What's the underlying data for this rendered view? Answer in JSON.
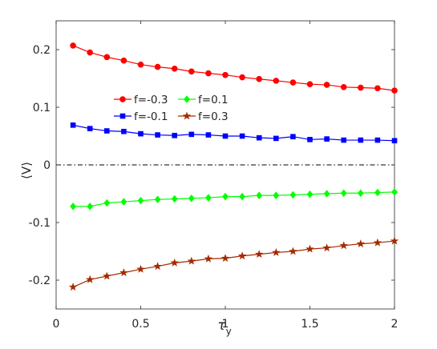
{
  "chart_data": {
    "type": "line",
    "xlabel": "τ",
    "xlabel_sub": "y",
    "ylabel": "⟨V⟩",
    "xlim": [
      0,
      2
    ],
    "ylim": [
      -0.25,
      0.25
    ],
    "xticks": [
      0,
      0.5,
      1,
      1.5,
      2
    ],
    "xtick_labels": [
      "0",
      "0.5",
      "1",
      "1.5",
      "2"
    ],
    "yticks": [
      -0.2,
      -0.1,
      0,
      0.1,
      0.2
    ],
    "ytick_labels": [
      "-0.2",
      "-0.1",
      "0",
      "0.1",
      "0.2"
    ],
    "grid": false,
    "legend_placement": "upper-left, two columns",
    "zero_line": {
      "y": 0,
      "style": "dash-dot",
      "color": "#000000"
    },
    "x": [
      0.1,
      0.2,
      0.3,
      0.4,
      0.5,
      0.6,
      0.7,
      0.8,
      0.9,
      1.0,
      1.1,
      1.2,
      1.3,
      1.4,
      1.5,
      1.6,
      1.7,
      1.8,
      1.9,
      2.0
    ],
    "series": [
      {
        "name": "f=-0.3",
        "color": "#ff0000",
        "marker": "circle",
        "values": [
          0.207,
          0.195,
          0.187,
          0.181,
          0.174,
          0.17,
          0.167,
          0.162,
          0.159,
          0.156,
          0.152,
          0.149,
          0.146,
          0.143,
          0.14,
          0.139,
          0.135,
          0.134,
          0.133,
          0.129
        ]
      },
      {
        "name": "f=-0.1",
        "color": "#0000ff",
        "marker": "square",
        "values": [
          0.069,
          0.063,
          0.059,
          0.058,
          0.054,
          0.052,
          0.051,
          0.053,
          0.052,
          0.05,
          0.05,
          0.047,
          0.046,
          0.049,
          0.044,
          0.045,
          0.043,
          0.043,
          0.043,
          0.042
        ]
      },
      {
        "name": "f=0.1",
        "color": "#00ff00",
        "marker": "diamond",
        "values": [
          -0.072,
          -0.072,
          -0.066,
          -0.064,
          -0.062,
          -0.06,
          -0.059,
          -0.058,
          -0.057,
          -0.055,
          -0.055,
          -0.053,
          -0.053,
          -0.052,
          -0.051,
          -0.05,
          -0.049,
          -0.049,
          -0.048,
          -0.047
        ]
      },
      {
        "name": "f=0.3",
        "color": "#a52a00",
        "marker": "star",
        "values": [
          -0.212,
          -0.199,
          -0.193,
          -0.187,
          -0.181,
          -0.176,
          -0.17,
          -0.167,
          -0.163,
          -0.162,
          -0.158,
          -0.155,
          -0.152,
          -0.15,
          -0.146,
          -0.144,
          -0.14,
          -0.137,
          -0.135,
          -0.132
        ]
      }
    ]
  }
}
